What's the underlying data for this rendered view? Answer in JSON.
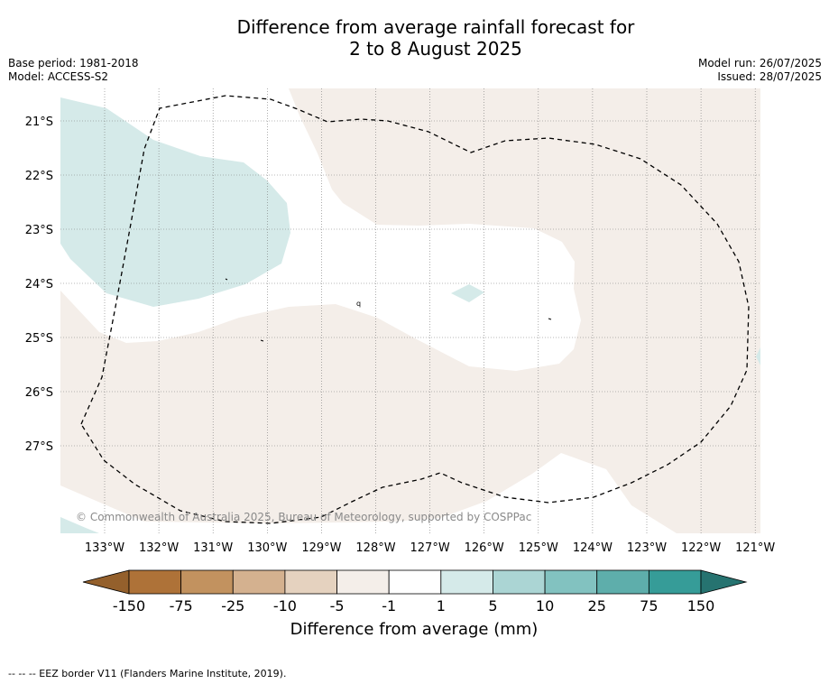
{
  "title_line1": "Difference from average rainfall forecast for",
  "title_line2": "2 to 8 August 2025",
  "meta_left": {
    "base_period": "Base period: 1981-2018",
    "model": "Model: ACCESS-S2"
  },
  "meta_right": {
    "model_run": "Model run: 26/07/2025",
    "issued": "Issued: 28/07/2025"
  },
  "map": {
    "lat_labels": [
      "21°S",
      "22°S",
      "23°S",
      "24°S",
      "25°S",
      "26°S",
      "27°S"
    ],
    "lon_labels": [
      "133°W",
      "132°W",
      "131°W",
      "130°W",
      "129°W",
      "128°W",
      "127°W",
      "126°W",
      "125°W",
      "124°W",
      "123°W",
      "122°W",
      "121°W"
    ],
    "copyright": "© Commonwealth of Australia 2025, Bureau of Meteorology, supported by COSPPac",
    "eez_border": "EEZ border V11"
  },
  "legend": {
    "bins": [
      {
        "label": "-150",
        "color": "#ae7238"
      },
      {
        "label": "-75",
        "color": "#c2925f"
      },
      {
        "label": "-25",
        "color": "#d4b18f"
      },
      {
        "label": "-10",
        "color": "#e5d2bf"
      },
      {
        "label": "-5",
        "color": "#f4eee9"
      },
      {
        "label": "-1",
        "color": "#ffffff"
      },
      {
        "label": "1",
        "color": "#d5eae9"
      },
      {
        "label": "5",
        "color": "#abd5d4"
      },
      {
        "label": "10",
        "color": "#82c2c0"
      },
      {
        "label": "25",
        "color": "#5eaeab"
      },
      {
        "label": "75",
        "color": "#369c98"
      }
    ],
    "end_low_color": "#94602c",
    "end_high_color": "#267370",
    "last_label": "150",
    "caption": "Difference from average (mm)"
  },
  "footnote": "--  --  -- EEZ border V11 (Flanders Marine Institute, 2019)."
}
